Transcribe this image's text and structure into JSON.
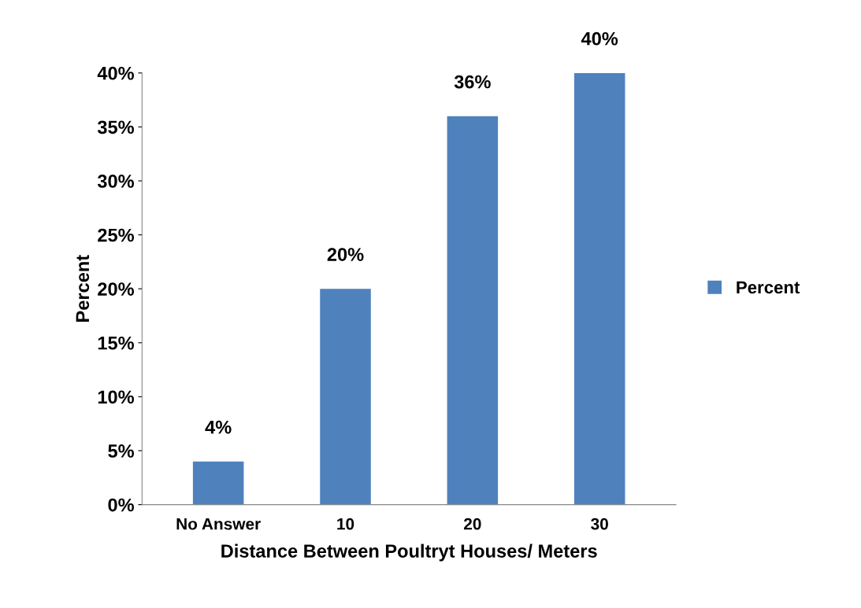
{
  "chart_data": {
    "type": "bar",
    "xlabel": "Distance Between Poultryt Houses/ Meters",
    "ylabel": "Percent",
    "categories": [
      "No Answer",
      "10",
      "20",
      "30"
    ],
    "series": [
      {
        "name": "Percent",
        "color": "#4f81bd",
        "values": [
          4,
          20,
          36,
          40
        ],
        "value_labels": [
          "4%",
          "20%",
          "36%",
          "40%"
        ]
      }
    ],
    "ylim": [
      0,
      40
    ],
    "yticks": [
      {
        "value": 0,
        "label": "0%"
      },
      {
        "value": 5,
        "label": "5%"
      },
      {
        "value": 10,
        "label": "10%"
      },
      {
        "value": 15,
        "label": "15%"
      },
      {
        "value": 20,
        "label": "20%"
      },
      {
        "value": 25,
        "label": "25%"
      },
      {
        "value": 30,
        "label": "30%"
      },
      {
        "value": 35,
        "label": "35%"
      },
      {
        "value": 40,
        "label": "40%"
      }
    ],
    "legend": "right"
  }
}
